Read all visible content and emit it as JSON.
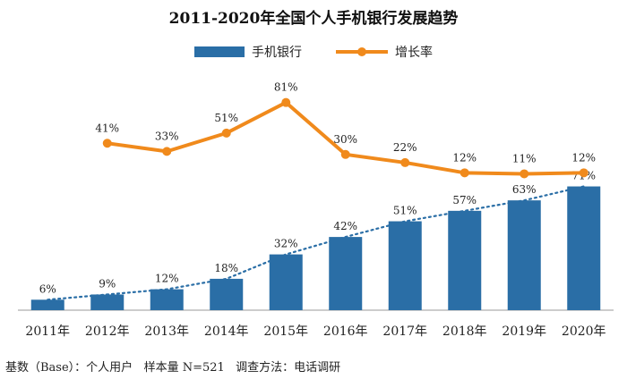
{
  "chart_data": {
    "type": "bar",
    "title": "2011-2020年全国个人手机银行发展趋势",
    "categories": [
      "2011年",
      "2012年",
      "2013年",
      "2014年",
      "2015年",
      "2016年",
      "2017年",
      "2018年",
      "2019年",
      "2020年"
    ],
    "series": [
      {
        "name": "手机银行",
        "type": "bar",
        "color": "#2a6ea6",
        "values": [
          6,
          9,
          12,
          18,
          32,
          42,
          51,
          57,
          63,
          71
        ],
        "labels": [
          "6%",
          "9%",
          "12%",
          "18%",
          "32%",
          "42%",
          "51%",
          "57%",
          "63%",
          "71%"
        ],
        "trendline": "dotted"
      },
      {
        "name": "增长率",
        "type": "line",
        "color": "#f08a1c",
        "values": [
          null,
          41,
          33,
          51,
          81,
          30,
          22,
          12,
          11,
          12
        ],
        "labels": [
          "",
          "41%",
          "33%",
          "51%",
          "81%",
          "30%",
          "22%",
          "12%",
          "11%",
          "12%"
        ]
      }
    ],
    "legend": "top-center",
    "grid": false
  },
  "footnote": "基数（Base）：个人用户   样本量 N=521   调查方法：电话调研"
}
